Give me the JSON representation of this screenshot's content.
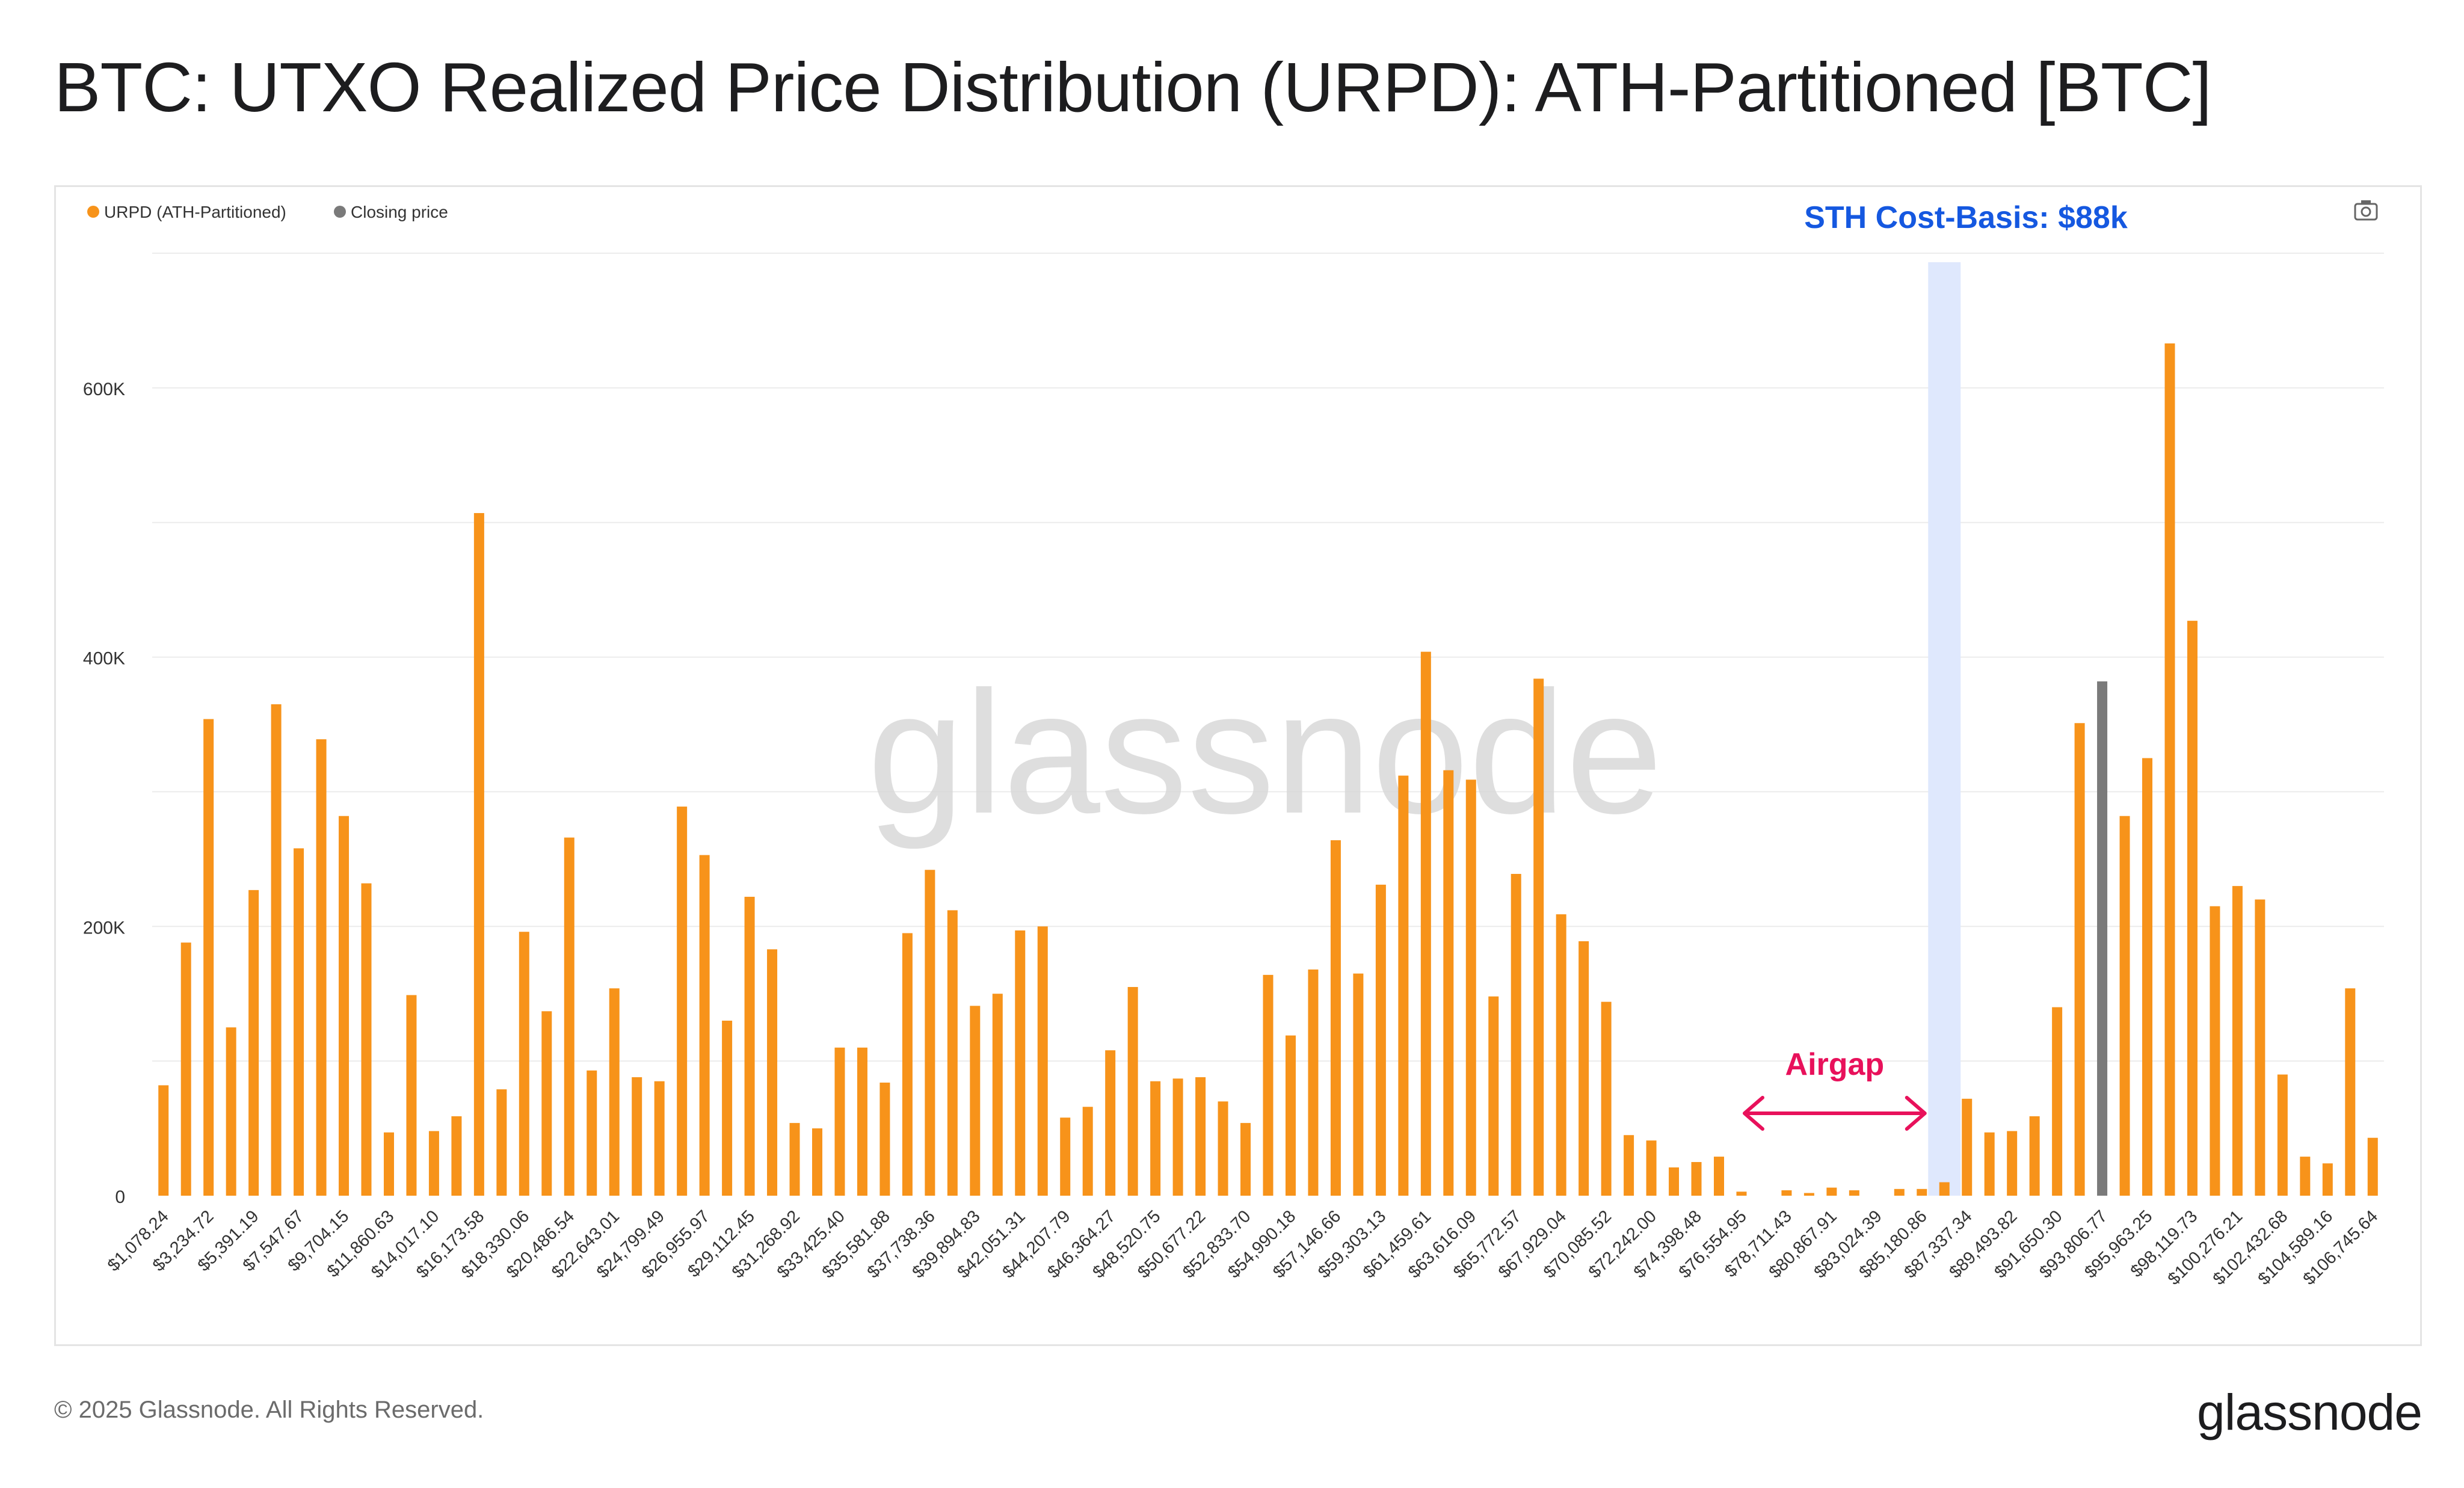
{
  "header": {
    "title": "BTC: UTXO Realized Price Distribution (URPD): ATH-Partitioned [BTC]"
  },
  "footer": {
    "copyright": "© 2025 Glassnode. All Rights Reserved.",
    "logo_text": "glassnode"
  },
  "colors": {
    "urpd": "#f7931a",
    "closing_price": "#7a7a7a",
    "sth_band": "#dfe8fd",
    "sth_text": "#1558e0",
    "airgap": "#e8115b",
    "grid": "#ececec",
    "axis_text": "#333333",
    "watermark": "#d9d9d9"
  },
  "icons": {
    "camera": "camera-icon"
  },
  "chart_data": {
    "type": "bar",
    "title": "BTC: UTXO Realized Price Distribution (URPD): ATH-Partitioned [BTC]",
    "xlabel": "",
    "ylabel": "",
    "ylim": [
      0,
      700000
    ],
    "yticks": [
      0,
      200000,
      400000,
      600000
    ],
    "ytick_labels": [
      "0",
      "200K",
      "400K",
      "600K"
    ],
    "grid": true,
    "legend_position": "top-left",
    "watermark": "glassnode",
    "legend": [
      {
        "name": "URPD (ATH-Partitioned)",
        "color": "#f7931a"
      },
      {
        "name": "Closing price",
        "color": "#7a7a7a"
      }
    ],
    "tick_labels": [
      "$1,078.24",
      "$3,234.72",
      "$5,391.19",
      "$7,547.67",
      "$9,704.15",
      "$11,860.63",
      "$14,017.10",
      "$16,173.58",
      "$18,330.06",
      "$20,486.54",
      "$22,643.01",
      "$24,799.49",
      "$26,955.97",
      "$29,112.45",
      "$31,268.92",
      "$33,425.40",
      "$35,581.88",
      "$37,738.36",
      "$39,894.83",
      "$42,051.31",
      "$44,207.79",
      "$46,364.27",
      "$48,520.75",
      "$50,677.22",
      "$52,833.70",
      "$54,990.18",
      "$57,146.66",
      "$59,303.13",
      "$61,459.61",
      "$63,616.09",
      "$65,772.57",
      "$67,929.04",
      "$70,085.52",
      "$72,242.00",
      "$74,398.48",
      "$76,554.95",
      "$78,711.43",
      "$80,867.91",
      "$83,024.39",
      "$85,180.86",
      "$87,337.34",
      "$89,493.82",
      "$91,650.30",
      "$93,806.77",
      "$95,963.25",
      "$98,119.73",
      "$100,276.21",
      "$102,432.68",
      "$104,589.16",
      "$106,745.64"
    ],
    "closing_price_index": 86,
    "series": [
      {
        "name": "URPD (ATH-Partitioned)",
        "values": [
          82000,
          188000,
          354000,
          125000,
          227000,
          365000,
          258000,
          339000,
          282000,
          232000,
          47000,
          149000,
          48000,
          59000,
          507000,
          79000,
          196000,
          137000,
          266000,
          93000,
          154000,
          88000,
          85000,
          289000,
          253000,
          130000,
          222000,
          183000,
          54000,
          50000,
          110000,
          110000,
          84000,
          195000,
          242000,
          212000,
          141000,
          150000,
          197000,
          200000,
          58000,
          66000,
          108000,
          155000,
          85000,
          87000,
          88000,
          70000,
          54000,
          164000,
          119000,
          168000,
          264000,
          165000,
          231000,
          312000,
          404000,
          316000,
          309000,
          148000,
          239000,
          384000,
          209000,
          189000,
          144000,
          45000,
          41000,
          21000,
          25000,
          29000,
          3000,
          0,
          4000,
          2000,
          6000,
          4000,
          0,
          5000,
          5000,
          10000,
          72000,
          47000,
          48000,
          59000,
          140000,
          351000,
          382000,
          282000,
          325000,
          633000,
          427000,
          215000,
          230000,
          220000,
          90000,
          29000,
          24000,
          154000,
          43000
        ]
      }
    ],
    "annotations": [
      {
        "text": "STH Cost-Basis: $88k",
        "band_index": 79
      },
      {
        "text": "Airgap",
        "from_index": 70,
        "to_index": 78
      }
    ]
  }
}
